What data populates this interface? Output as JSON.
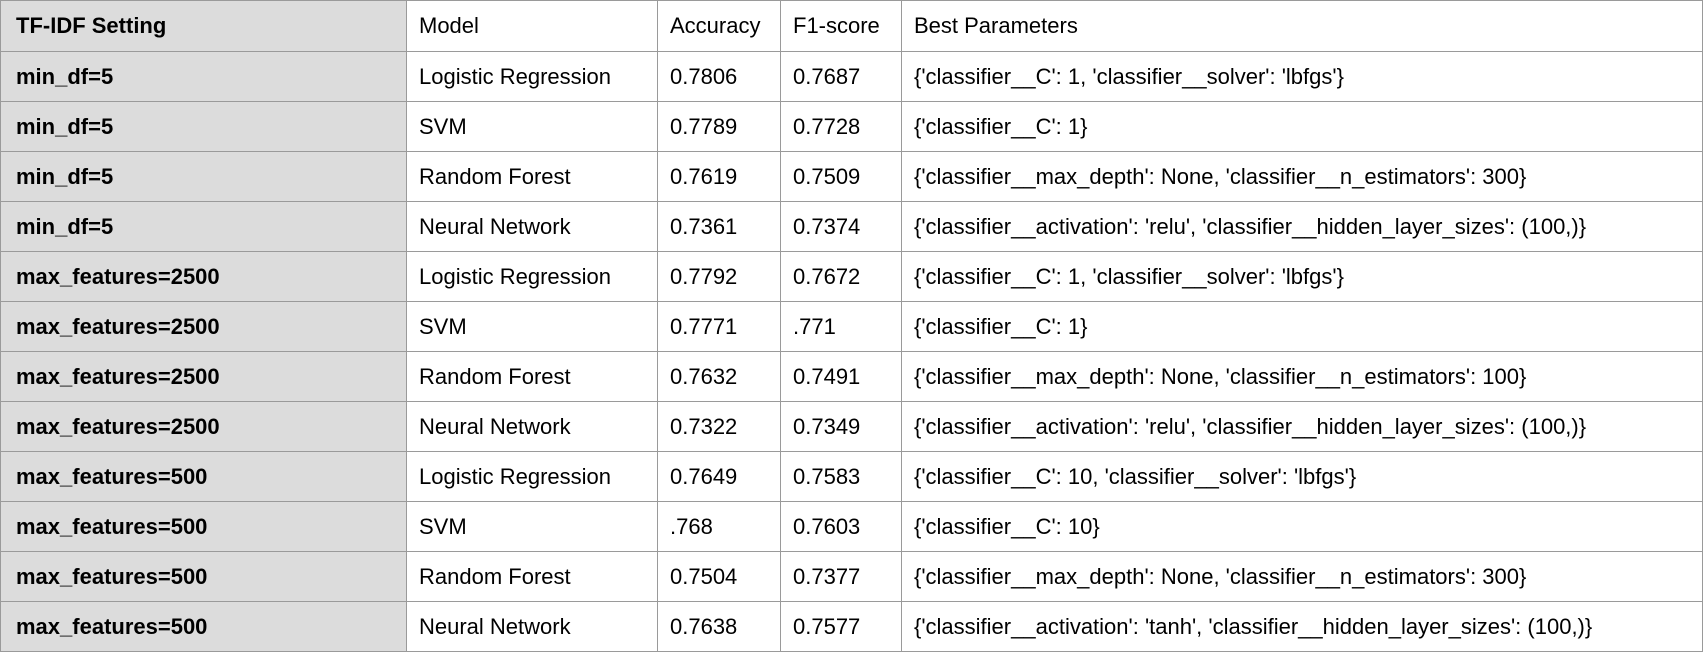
{
  "table": {
    "headers": [
      "TF-IDF Setting",
      "Model",
      "Accuracy",
      "F1-score",
      "Best Parameters"
    ],
    "rows": [
      [
        "min_df=5",
        "Logistic Regression",
        "0.7806",
        "0.7687",
        "{'classifier__C': 1, 'classifier__solver': 'lbfgs'}"
      ],
      [
        "min_df=5",
        "SVM",
        "0.7789",
        "0.7728",
        "{'classifier__C': 1}"
      ],
      [
        "min_df=5",
        "Random Forest",
        "0.7619",
        "0.7509",
        "{'classifier__max_depth': None, 'classifier__n_estimators': 300}"
      ],
      [
        "min_df=5",
        "Neural Network",
        "0.7361",
        "0.7374",
        "{'classifier__activation': 'relu', 'classifier__hidden_layer_sizes': (100,)}"
      ],
      [
        "max_features=2500",
        "Logistic Regression",
        "0.7792",
        "0.7672",
        "{'classifier__C': 1, 'classifier__solver': 'lbfgs'}"
      ],
      [
        "max_features=2500",
        "SVM",
        "0.7771",
        ".771",
        "{'classifier__C': 1}"
      ],
      [
        "max_features=2500",
        "Random Forest",
        "0.7632",
        "0.7491",
        "{'classifier__max_depth': None, 'classifier__n_estimators': 100}"
      ],
      [
        "max_features=2500",
        "Neural Network",
        "0.7322",
        "0.7349",
        "{'classifier__activation': 'relu', 'classifier__hidden_layer_sizes': (100,)}"
      ],
      [
        "max_features=500",
        "Logistic Regression",
        "0.7649",
        "0.7583",
        "{'classifier__C': 10, 'classifier__solver': 'lbfgs'}"
      ],
      [
        "max_features=500",
        "SVM",
        ".768",
        "0.7603",
        "{'classifier__C': 10}"
      ],
      [
        "max_features=500",
        "Random Forest",
        "0.7504",
        "0.7377",
        "{'classifier__max_depth': None, 'classifier__n_estimators': 300}"
      ],
      [
        "max_features=500",
        "Neural Network",
        "0.7638",
        "0.7577",
        "{'classifier__activation': 'tanh', 'classifier__hidden_layer_sizes': (100,)}"
      ]
    ]
  },
  "colors": {
    "setting_column_background": "#dcdcdc",
    "border": "#9a9a9a",
    "text": "#000000"
  }
}
